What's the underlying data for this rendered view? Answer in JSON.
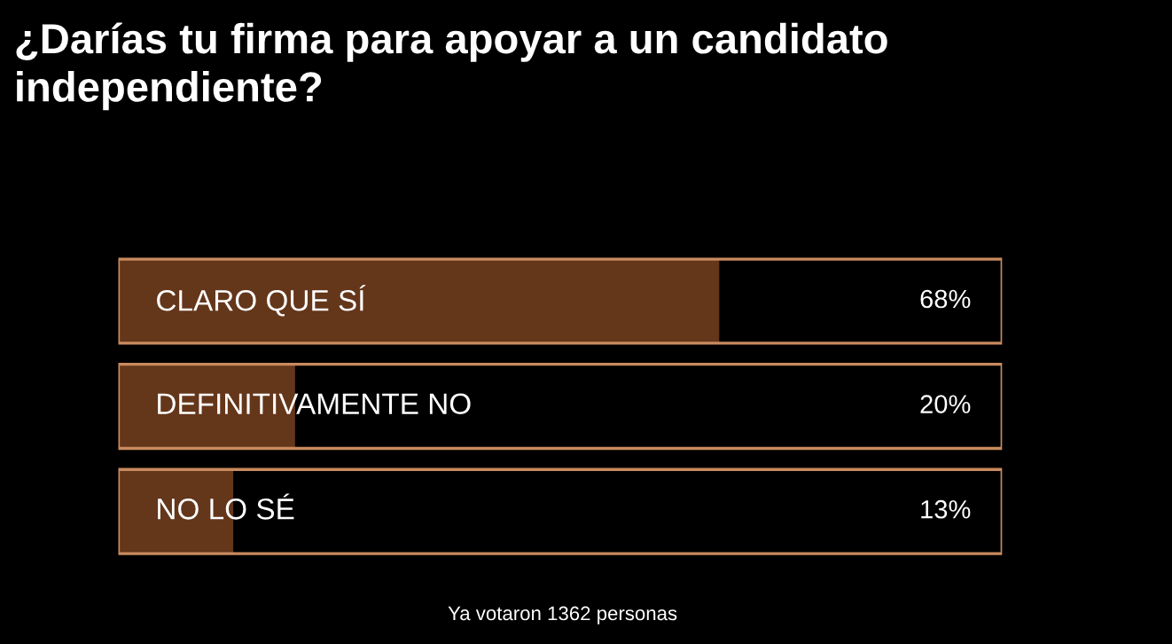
{
  "chart_data": {
    "type": "bar",
    "orientation": "horizontal",
    "title": "¿Darías tu firma para apoyar a un candidato independiente?",
    "categories": [
      "CLARO QUE SÍ",
      "DEFINITIVAMENTE NO",
      "NO LO SÉ"
    ],
    "values": [
      68,
      20,
      13
    ],
    "value_labels": [
      "68%",
      "20%",
      "13%"
    ],
    "color": "#64361a",
    "xlim": [
      0,
      100
    ],
    "annotations": [
      "Ya votaron 1362 personas"
    ]
  }
}
